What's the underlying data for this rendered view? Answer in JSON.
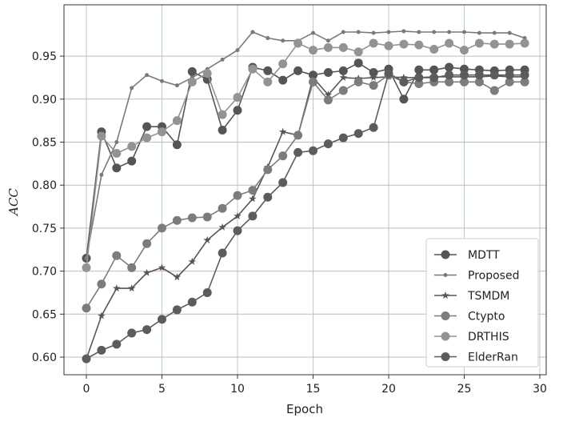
{
  "chart_data": {
    "type": "line",
    "title": "",
    "xlabel": "Epoch",
    "ylabel": "ACC",
    "xlim": [
      -1.5,
      30.5
    ],
    "ylim": [
      0.58,
      0.99
    ],
    "xticks": [
      "0",
      "5",
      "10",
      "15",
      "20",
      "25",
      "30"
    ],
    "yticks": [
      "0.60",
      "0.65",
      "0.70",
      "0.75",
      "0.80",
      "0.85",
      "0.90",
      "0.95"
    ],
    "grid": true,
    "legend_position": "lower-right",
    "x": [
      0,
      1,
      2,
      3,
      4,
      5,
      6,
      7,
      8,
      9,
      10,
      11,
      12,
      13,
      14,
      15,
      16,
      17,
      18,
      19,
      20,
      21,
      22,
      23,
      24,
      25,
      26,
      27,
      28,
      29
    ],
    "series": [
      {
        "name": "MDTT",
        "marker": "circle",
        "color": "#555555",
        "values": [
          0.715,
          0.862,
          0.82,
          0.828,
          0.868,
          0.868,
          0.847,
          0.932,
          0.923,
          0.864,
          0.887,
          0.937,
          0.933,
          0.922,
          0.933,
          0.928,
          0.931,
          0.933,
          0.942,
          0.931,
          0.935,
          0.9,
          0.934,
          0.934,
          0.937,
          0.935,
          0.934,
          0.933,
          0.934,
          0.934
        ]
      },
      {
        "name": "Proposed",
        "marker": "dot",
        "color": "#7a7a7a",
        "values": [
          0.715,
          0.812,
          0.85,
          0.913,
          0.928,
          0.921,
          0.916,
          0.925,
          0.935,
          0.946,
          0.957,
          0.978,
          0.971,
          0.968,
          0.968,
          0.977,
          0.968,
          0.978,
          0.978,
          0.977,
          0.978,
          0.979,
          0.978,
          0.978,
          0.978,
          0.978,
          0.977,
          0.977,
          0.977,
          0.971
        ]
      },
      {
        "name": "TSMDM",
        "marker": "star",
        "color": "#555555",
        "values": [
          0.598,
          0.648,
          0.68,
          0.68,
          0.698,
          0.704,
          0.693,
          0.711,
          0.736,
          0.751,
          0.764,
          0.784,
          0.821,
          0.862,
          0.858,
          0.925,
          0.905,
          0.925,
          0.924,
          0.925,
          0.926,
          0.925,
          0.925,
          0.926,
          0.926,
          0.926,
          0.926,
          0.927,
          0.926,
          0.926
        ]
      },
      {
        "name": "Ctypto",
        "marker": "circle",
        "color": "#7c7c7c",
        "values": [
          0.657,
          0.685,
          0.718,
          0.704,
          0.732,
          0.75,
          0.759,
          0.762,
          0.763,
          0.773,
          0.788,
          0.794,
          0.818,
          0.834,
          0.858,
          0.92,
          0.899,
          0.91,
          0.92,
          0.916,
          0.928,
          0.92,
          0.918,
          0.92,
          0.92,
          0.92,
          0.92,
          0.91,
          0.92,
          0.92
        ]
      },
      {
        "name": "DRTHIS",
        "marker": "circle",
        "color": "#939393",
        "values": [
          0.704,
          0.857,
          0.837,
          0.845,
          0.855,
          0.862,
          0.875,
          0.92,
          0.93,
          0.882,
          0.902,
          0.935,
          0.92,
          0.941,
          0.965,
          0.957,
          0.96,
          0.96,
          0.955,
          0.965,
          0.962,
          0.964,
          0.963,
          0.958,
          0.965,
          0.957,
          0.965,
          0.964,
          0.964,
          0.965
        ]
      },
      {
        "name": "ElderRan",
        "marker": "circle",
        "color": "#5c5c5c",
        "values": [
          0.598,
          0.608,
          0.615,
          0.628,
          0.632,
          0.644,
          0.655,
          0.664,
          0.675,
          0.721,
          0.747,
          0.764,
          0.786,
          0.803,
          0.838,
          0.84,
          0.848,
          0.855,
          0.86,
          0.867,
          0.93,
          0.92,
          0.925,
          0.925,
          0.928,
          0.928,
          0.928,
          0.928,
          0.928,
          0.928
        ]
      }
    ]
  }
}
